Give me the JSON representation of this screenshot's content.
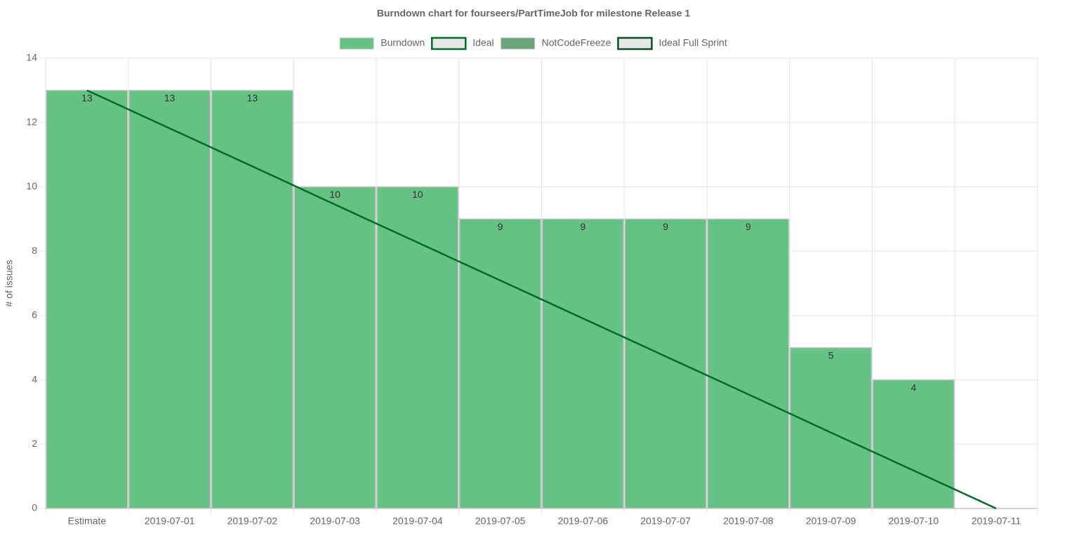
{
  "chart_data": {
    "type": "bar",
    "title": "Burndown chart for fourseers/PartTimeJob for milestone Release 1",
    "y_label": "# of issues",
    "categories": [
      "Estimate",
      "2019-07-01",
      "2019-07-02",
      "2019-07-03",
      "2019-07-04",
      "2019-07-05",
      "2019-07-06",
      "2019-07-07",
      "2019-07-08",
      "2019-07-09",
      "2019-07-10",
      "2019-07-11"
    ],
    "series": [
      {
        "name": "Burndown",
        "type": "bar",
        "color": "#66c184",
        "border": "#c8c8c8",
        "values": [
          13,
          13,
          13,
          10,
          10,
          9,
          9,
          9,
          9,
          5,
          4,
          null
        ]
      },
      {
        "name": "Ideal",
        "type": "line",
        "color": "#006b2a",
        "legend_fill": "#e6e6e6",
        "values": [
          13,
          11.82,
          10.64,
          9.45,
          8.27,
          7.09,
          5.91,
          4.73,
          3.55,
          2.36,
          1.18,
          0
        ]
      },
      {
        "name": "NotCodeFreeze",
        "type": "bar",
        "color": "#68a57a",
        "values": [
          null,
          null,
          null,
          null,
          null,
          null,
          null,
          null,
          null,
          null,
          null,
          null
        ]
      },
      {
        "name": "Ideal Full Sprint",
        "type": "line",
        "color": "#0a4d22",
        "legend_fill": "#e6e6e6",
        "values": [
          null,
          null,
          null,
          null,
          null,
          null,
          null,
          null,
          null,
          null,
          null,
          null
        ]
      }
    ],
    "ylim": [
      0,
      14
    ],
    "yticks": [
      0,
      2,
      4,
      6,
      8,
      10,
      12,
      14
    ],
    "grid": true,
    "legend": "top"
  }
}
